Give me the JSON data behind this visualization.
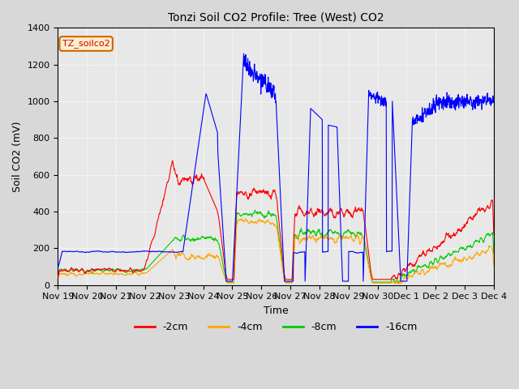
{
  "title": "Tonzi Soil CO2 Profile: Tree (West) CO2",
  "ylabel": "Soil CO2 (mV)",
  "xlabel": "Time",
  "annotation": "TZ_soilco2",
  "ylim": [
    0,
    1400
  ],
  "legend_labels": [
    "-2cm",
    "-4cm",
    "-8cm",
    "-16cm"
  ],
  "legend_colors": [
    "#ff0000",
    "#ffa500",
    "#00cc00",
    "#0000ff"
  ],
  "bg_color": "#e8e8e8",
  "plot_bg_color": "#f0f0f0",
  "x_tick_labels": [
    "Nov 19",
    "Nov 20",
    "Nov 21",
    "Nov 22",
    "Nov 23",
    "Nov 24",
    "Nov 25",
    "Nov 26",
    "Nov 27",
    "Nov 28",
    "Nov 29",
    "Nov 30",
    "Dec 1",
    "Dec 2",
    "Dec 3",
    "Dec 4"
  ],
  "n_points": 480
}
